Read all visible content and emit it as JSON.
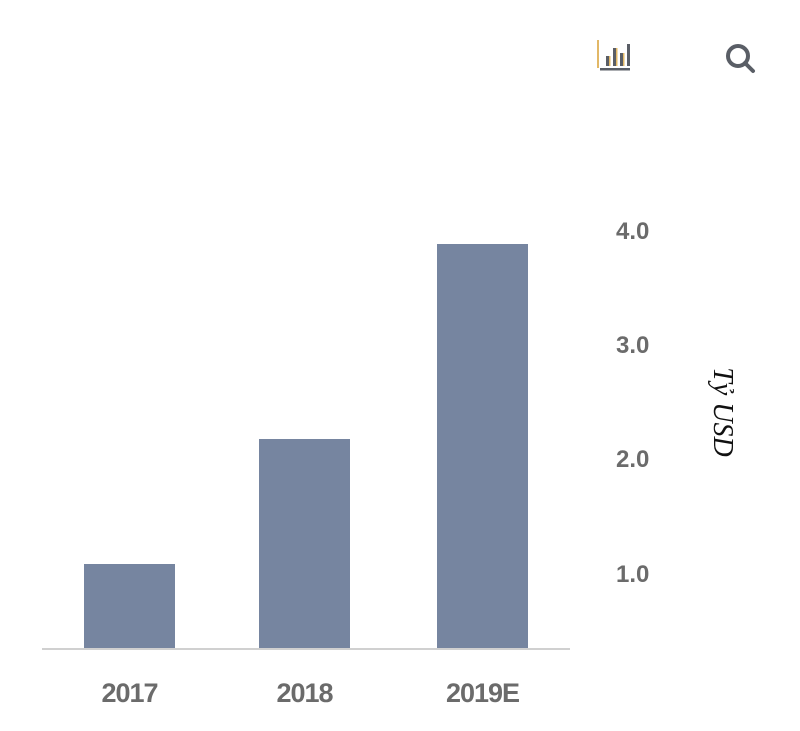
{
  "toolbar": {
    "chart_icon": "bar-chart-icon",
    "search_icon": "magnifier-icon",
    "icon_accent": "#e2b867",
    "icon_color": "#5a5e66"
  },
  "chart_data": {
    "type": "bar",
    "title": "",
    "categories": [
      "2017",
      "2018",
      "2019E"
    ],
    "values": [
      1.1,
      2.2,
      3.9
    ],
    "xlabel": "",
    "ylabel": "Tỷ USD",
    "yticks": [
      "1.0",
      "2.0",
      "3.0",
      "4.0"
    ],
    "ylim": [
      0.35,
      4.2
    ],
    "y_axis_position": "right",
    "grid": false,
    "legend": null,
    "bar_color": "#7685a0"
  }
}
